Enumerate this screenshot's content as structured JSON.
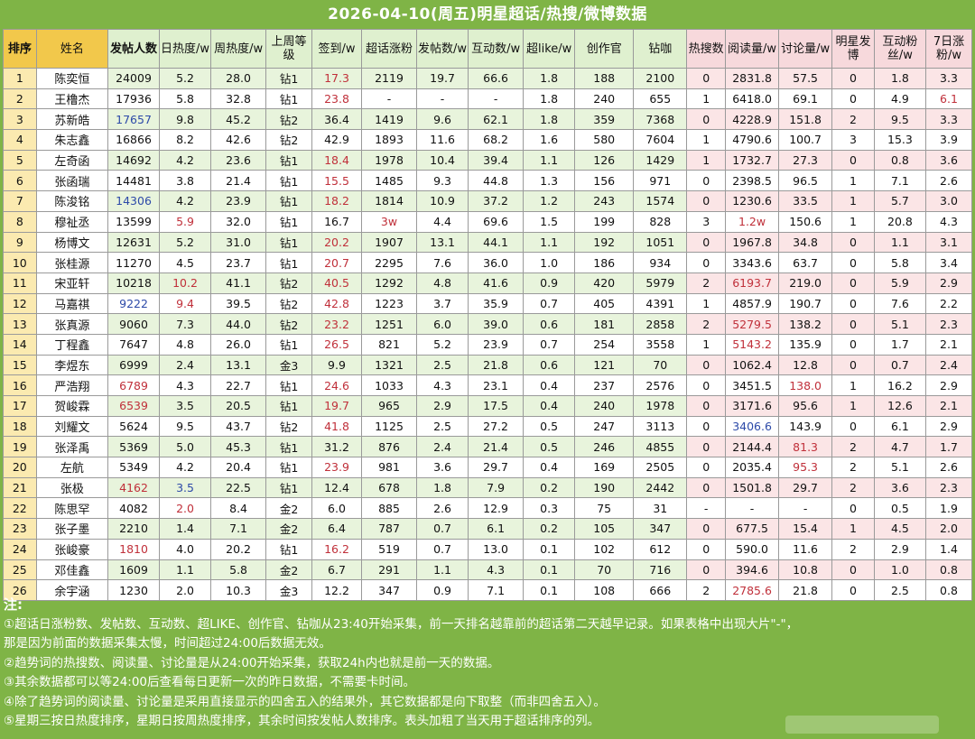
{
  "title": "2026-04-10(周五)明星超话/热搜/微博数据",
  "headers": [
    {
      "label": "排序",
      "style": "h-rank",
      "bold": true
    },
    {
      "label": "姓名",
      "style": "h-rank",
      "bold": false
    },
    {
      "label": "发帖人数",
      "style": "h-green",
      "bold": true
    },
    {
      "label": "日热度/w",
      "style": "h-green",
      "bold": false
    },
    {
      "label": "周热度/w",
      "style": "h-green",
      "bold": false
    },
    {
      "label": "上周等级",
      "style": "h-green",
      "bold": false
    },
    {
      "label": "签到/w",
      "style": "h-green",
      "bold": false
    },
    {
      "label": "超话涨粉",
      "style": "h-green",
      "bold": false
    },
    {
      "label": "发帖数/w",
      "style": "h-green",
      "bold": false
    },
    {
      "label": "互动数/w",
      "style": "h-green",
      "bold": false
    },
    {
      "label": "超like/w",
      "style": "h-green",
      "bold": false
    },
    {
      "label": "创作官",
      "style": "h-green",
      "bold": false
    },
    {
      "label": "钻咖",
      "style": "h-green",
      "bold": false
    },
    {
      "label": "热搜数",
      "style": "h-pink",
      "bold": false
    },
    {
      "label": "阅读量/w",
      "style": "h-pink",
      "bold": false
    },
    {
      "label": "讨论量/w",
      "style": "h-pink",
      "bold": false
    },
    {
      "label": "明星发博",
      "style": "h-pink",
      "bold": false
    },
    {
      "label": "互动粉丝/w",
      "style": "h-pink",
      "bold": false
    },
    {
      "label": "7日涨粉/w",
      "style": "h-pink",
      "bold": false
    }
  ],
  "rows": [
    [
      "1",
      "陈奕恒",
      "24009",
      "5.2",
      "28.0",
      "钻1",
      "17.3",
      "2119",
      "19.7",
      "66.6",
      "1.8",
      "188",
      "2100",
      "0",
      "2831.8",
      "57.5",
      "0",
      "1.8",
      "3.3"
    ],
    [
      "2",
      "王橹杰",
      "17936",
      "5.8",
      "32.8",
      "钻1",
      "23.8",
      "-",
      "-",
      "-",
      "1.8",
      "240",
      "655",
      "1",
      "6418.0",
      "69.1",
      "0",
      "4.9",
      "6.1"
    ],
    [
      "3",
      "苏新皓",
      "17657",
      "9.8",
      "45.2",
      "钻2",
      "36.4",
      "1419",
      "9.6",
      "62.1",
      "1.8",
      "359",
      "7368",
      "0",
      "4228.9",
      "151.8",
      "2",
      "9.5",
      "3.3"
    ],
    [
      "4",
      "朱志鑫",
      "16866",
      "8.2",
      "42.6",
      "钻2",
      "42.9",
      "1893",
      "11.6",
      "68.2",
      "1.6",
      "580",
      "7604",
      "1",
      "4790.6",
      "100.7",
      "3",
      "15.3",
      "3.9"
    ],
    [
      "5",
      "左奇函",
      "14692",
      "4.2",
      "23.6",
      "钻1",
      "18.4",
      "1978",
      "10.4",
      "39.4",
      "1.1",
      "126",
      "1429",
      "1",
      "1732.7",
      "27.3",
      "0",
      "0.8",
      "3.6"
    ],
    [
      "6",
      "张函瑞",
      "14481",
      "3.8",
      "21.4",
      "钻1",
      "15.5",
      "1485",
      "9.3",
      "44.8",
      "1.3",
      "156",
      "971",
      "0",
      "2398.5",
      "96.5",
      "1",
      "7.1",
      "2.6"
    ],
    [
      "7",
      "陈浚铭",
      "14306",
      "4.2",
      "23.9",
      "钻1",
      "18.2",
      "1814",
      "10.9",
      "37.2",
      "1.2",
      "243",
      "1574",
      "0",
      "1230.6",
      "33.5",
      "1",
      "5.7",
      "3.0"
    ],
    [
      "8",
      "穆祉丞",
      "13599",
      "5.9",
      "32.0",
      "钻1",
      "16.7",
      "3w",
      "4.4",
      "69.6",
      "1.5",
      "199",
      "828",
      "3",
      "1.2w",
      "150.6",
      "1",
      "20.8",
      "4.3"
    ],
    [
      "9",
      "杨博文",
      "12631",
      "5.2",
      "31.0",
      "钻1",
      "20.2",
      "1907",
      "13.1",
      "44.1",
      "1.1",
      "192",
      "1051",
      "0",
      "1967.8",
      "34.8",
      "0",
      "1.1",
      "3.1"
    ],
    [
      "10",
      "张桂源",
      "11270",
      "4.5",
      "23.7",
      "钻1",
      "20.7",
      "2295",
      "7.6",
      "36.0",
      "1.0",
      "186",
      "934",
      "0",
      "3343.6",
      "63.7",
      "0",
      "5.8",
      "3.4"
    ],
    [
      "11",
      "宋亚轩",
      "10218",
      "10.2",
      "41.1",
      "钻2",
      "40.5",
      "1292",
      "4.8",
      "41.6",
      "0.9",
      "420",
      "5979",
      "2",
      "6193.7",
      "219.0",
      "0",
      "5.9",
      "2.9"
    ],
    [
      "12",
      "马嘉祺",
      "9222",
      "9.4",
      "39.5",
      "钻2",
      "42.8",
      "1223",
      "3.7",
      "35.9",
      "0.7",
      "405",
      "4391",
      "1",
      "4857.9",
      "190.7",
      "0",
      "7.6",
      "2.2"
    ],
    [
      "13",
      "张真源",
      "9060",
      "7.3",
      "44.0",
      "钻2",
      "23.2",
      "1251",
      "6.0",
      "39.0",
      "0.6",
      "181",
      "2858",
      "2",
      "5279.5",
      "138.2",
      "0",
      "5.1",
      "2.3"
    ],
    [
      "14",
      "丁程鑫",
      "7647",
      "4.8",
      "26.0",
      "钻1",
      "26.5",
      "821",
      "5.2",
      "23.9",
      "0.7",
      "254",
      "3558",
      "1",
      "5143.2",
      "135.9",
      "0",
      "1.7",
      "2.1"
    ],
    [
      "15",
      "李煜东",
      "6999",
      "2.4",
      "13.1",
      "金3",
      "9.9",
      "1321",
      "2.5",
      "21.8",
      "0.6",
      "121",
      "70",
      "0",
      "1062.4",
      "12.8",
      "0",
      "0.7",
      "2.4"
    ],
    [
      "16",
      "严浩翔",
      "6789",
      "4.3",
      "22.7",
      "钻1",
      "24.6",
      "1033",
      "4.3",
      "23.1",
      "0.4",
      "237",
      "2576",
      "0",
      "3451.5",
      "138.0",
      "1",
      "16.2",
      "2.9"
    ],
    [
      "17",
      "贺峻霖",
      "6539",
      "3.5",
      "20.5",
      "钻1",
      "19.7",
      "965",
      "2.9",
      "17.5",
      "0.4",
      "240",
      "1978",
      "0",
      "3171.6",
      "95.6",
      "1",
      "12.6",
      "2.1"
    ],
    [
      "18",
      "刘耀文",
      "5624",
      "9.5",
      "43.7",
      "钻2",
      "41.8",
      "1125",
      "2.5",
      "27.2",
      "0.5",
      "247",
      "3113",
      "0",
      "3406.6",
      "143.9",
      "0",
      "6.1",
      "2.9"
    ],
    [
      "19",
      "张泽禹",
      "5369",
      "5.0",
      "45.3",
      "钻1",
      "31.2",
      "876",
      "2.4",
      "21.4",
      "0.5",
      "246",
      "4855",
      "0",
      "2144.4",
      "81.3",
      "2",
      "4.7",
      "1.7"
    ],
    [
      "20",
      "左航",
      "5349",
      "4.2",
      "20.4",
      "钻1",
      "23.9",
      "981",
      "3.6",
      "29.7",
      "0.4",
      "169",
      "2505",
      "0",
      "2035.4",
      "95.3",
      "2",
      "5.1",
      "2.6"
    ],
    [
      "21",
      "张极",
      "4162",
      "3.5",
      "22.5",
      "钻1",
      "12.4",
      "678",
      "1.8",
      "7.9",
      "0.2",
      "190",
      "2442",
      "0",
      "1501.8",
      "29.7",
      "2",
      "3.6",
      "2.3"
    ],
    [
      "22",
      "陈思罕",
      "4082",
      "2.0",
      "8.4",
      "金2",
      "6.0",
      "885",
      "2.6",
      "12.9",
      "0.3",
      "75",
      "31",
      "-",
      "-",
      "-",
      "0",
      "0.5",
      "1.9"
    ],
    [
      "23",
      "张子墨",
      "2210",
      "1.4",
      "7.1",
      "金2",
      "6.4",
      "787",
      "0.7",
      "6.1",
      "0.2",
      "105",
      "347",
      "0",
      "677.5",
      "15.4",
      "1",
      "4.5",
      "2.0"
    ],
    [
      "24",
      "张峻豪",
      "1810",
      "4.0",
      "20.2",
      "钻1",
      "16.2",
      "519",
      "0.7",
      "13.0",
      "0.1",
      "102",
      "612",
      "0",
      "590.0",
      "11.6",
      "2",
      "2.9",
      "1.4"
    ],
    [
      "25",
      "邓佳鑫",
      "1609",
      "1.1",
      "5.8",
      "金2",
      "6.7",
      "291",
      "1.1",
      "4.3",
      "0.1",
      "70",
      "716",
      "0",
      "394.6",
      "10.8",
      "0",
      "1.0",
      "0.8"
    ],
    [
      "26",
      "余宇涵",
      "1230",
      "2.0",
      "10.3",
      "金3",
      "12.2",
      "347",
      "0.9",
      "7.1",
      "0.1",
      "108",
      "666",
      "2",
      "2785.6",
      "21.8",
      "0",
      "2.5",
      "0.8"
    ]
  ],
  "red_cells": [
    [
      0,
      6
    ],
    [
      1,
      6
    ],
    [
      1,
      18
    ],
    [
      4,
      6
    ],
    [
      5,
      6
    ],
    [
      6,
      6
    ],
    [
      7,
      3
    ],
    [
      7,
      7
    ],
    [
      7,
      14
    ],
    [
      8,
      6
    ],
    [
      9,
      6
    ],
    [
      10,
      3
    ],
    [
      10,
      6
    ],
    [
      10,
      14
    ],
    [
      11,
      3
    ],
    [
      11,
      6
    ],
    [
      12,
      6
    ],
    [
      12,
      14
    ],
    [
      13,
      6
    ],
    [
      13,
      14
    ],
    [
      15,
      2
    ],
    [
      15,
      6
    ],
    [
      15,
      15
    ],
    [
      16,
      2
    ],
    [
      16,
      6
    ],
    [
      17,
      6
    ],
    [
      18,
      15
    ],
    [
      19,
      6
    ],
    [
      19,
      15
    ],
    [
      20,
      2
    ],
    [
      21,
      3
    ],
    [
      23,
      2
    ],
    [
      23,
      6
    ],
    [
      25,
      14
    ]
  ],
  "blue_cells": [
    [
      2,
      2
    ],
    [
      6,
      2
    ],
    [
      11,
      2
    ],
    [
      17,
      14
    ],
    [
      20,
      3
    ]
  ],
  "notes": {
    "heading": "注:",
    "lines": [
      "①超话日涨粉数、发帖数、互动数、超LIKE、创作官、钻咖从23:40开始采集，前一天排名越靠前的超话第二天越早记录。如果表格中出现大片\"-\"，",
      "那是因为前面的数据采集太慢，时间超过24:00后数据无效。",
      "②趋势词的热搜数、阅读量、讨论量是从24:00开始采集，获取24h内也就是前一天的数据。",
      "③其余数据都可以等24:00后查看每日更新一次的昨日数据，不需要卡时间。",
      "④除了趋势词的阅读量、讨论量是采用直接显示的四舍五入的结果外，其它数据都是向下取整（而非四舍五入）。",
      "⑤星期三按日热度排序，星期日按周热度排序，其余时间按发帖人数排序。表头加粗了当天用于超话排序的列。"
    ]
  }
}
